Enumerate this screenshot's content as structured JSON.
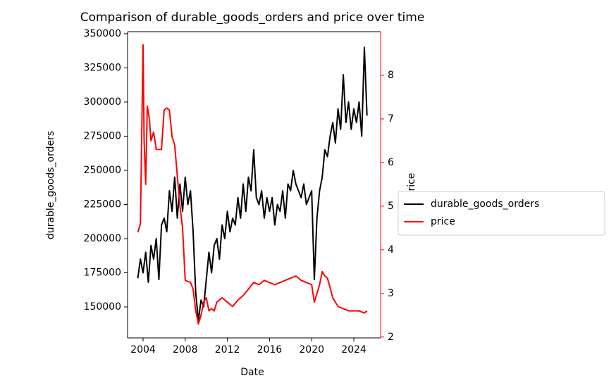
{
  "chart_data": {
    "type": "line",
    "title": "Comparison of durable_goods_orders and price over time",
    "xlabel": "Date",
    "ylabel": "durable_goods_orders",
    "y2label": "price",
    "xlim": [
      2002.53,
      2026.54
    ],
    "xticks": [
      2004,
      2008,
      2012,
      2016,
      2020,
      2024
    ],
    "ylim": [
      127320,
      351500
    ],
    "yticks": [
      150000,
      175000,
      200000,
      225000,
      250000,
      275000,
      300000,
      325000,
      350000
    ],
    "y2lim": [
      1.98,
      9.0
    ],
    "y2ticks": [
      2,
      3,
      4,
      5,
      6,
      7,
      8
    ],
    "legend": "right",
    "grid": false,
    "series": [
      {
        "name": "durable_goods_orders",
        "color": "#000000",
        "x": [
          2003.5,
          2003.75,
          2004.0,
          2004.25,
          2004.5,
          2004.75,
          2005.0,
          2005.25,
          2005.5,
          2005.75,
          2006.0,
          2006.25,
          2006.5,
          2006.75,
          2007.0,
          2007.25,
          2007.5,
          2007.75,
          2008.0,
          2008.25,
          2008.5,
          2008.75,
          2009.0,
          2009.25,
          2009.5,
          2009.75,
          2010.0,
          2010.25,
          2010.5,
          2010.75,
          2011.0,
          2011.25,
          2011.5,
          2011.75,
          2012.0,
          2012.25,
          2012.5,
          2012.75,
          2013.0,
          2013.25,
          2013.5,
          2013.75,
          2014.0,
          2014.25,
          2014.5,
          2014.75,
          2015.0,
          2015.25,
          2015.5,
          2015.75,
          2016.0,
          2016.25,
          2016.5,
          2016.75,
          2017.0,
          2017.25,
          2017.5,
          2017.75,
          2018.0,
          2018.25,
          2018.5,
          2018.75,
          2019.0,
          2019.25,
          2019.5,
          2019.75,
          2020.0,
          2020.25,
          2020.5,
          2020.75,
          2021.0,
          2021.25,
          2021.5,
          2021.75,
          2022.0,
          2022.25,
          2022.5,
          2022.75,
          2023.0,
          2023.25,
          2023.5,
          2023.75,
          2024.0,
          2024.25,
          2024.5,
          2024.75,
          2025.0,
          2025.25
        ],
        "values": [
          171000,
          185000,
          175000,
          190000,
          168000,
          195000,
          185000,
          200000,
          170000,
          210000,
          215000,
          205000,
          235000,
          220000,
          245000,
          215000,
          240000,
          220000,
          245000,
          225000,
          235000,
          205000,
          160000,
          140000,
          155000,
          150000,
          170000,
          190000,
          175000,
          195000,
          200000,
          185000,
          210000,
          200000,
          220000,
          205000,
          215000,
          210000,
          230000,
          215000,
          240000,
          220000,
          245000,
          235000,
          265000,
          230000,
          225000,
          235000,
          215000,
          230000,
          220000,
          230000,
          210000,
          225000,
          220000,
          235000,
          215000,
          240000,
          235000,
          250000,
          240000,
          235000,
          230000,
          240000,
          225000,
          230000,
          235000,
          170000,
          215000,
          235000,
          245000,
          265000,
          260000,
          275000,
          285000,
          270000,
          295000,
          280000,
          320000,
          285000,
          300000,
          280000,
          295000,
          285000,
          300000,
          275000,
          340000,
          290000
        ]
      },
      {
        "name": "price",
        "color": "#ff0000",
        "axis": "y2",
        "x": [
          2003.5,
          2003.75,
          2004.0,
          2004.1,
          2004.25,
          2004.4,
          2004.6,
          2004.75,
          2005.0,
          2005.25,
          2005.5,
          2005.75,
          2006.0,
          2006.25,
          2006.5,
          2006.75,
          2007.0,
          2007.25,
          2007.5,
          2007.75,
          2008.0,
          2008.5,
          2008.75,
          2009.0,
          2009.25,
          2009.5,
          2009.75,
          2010.0,
          2010.25,
          2010.5,
          2010.75,
          2011.0,
          2011.5,
          2012.0,
          2012.5,
          2013.0,
          2013.5,
          2014.0,
          2014.5,
          2015.0,
          2015.5,
          2016.0,
          2016.5,
          2017.0,
          2017.5,
          2018.0,
          2018.5,
          2019.0,
          2019.5,
          2020.0,
          2020.25,
          2020.5,
          2020.75,
          2021.0,
          2021.25,
          2021.5,
          2022.0,
          2022.5,
          2023.0,
          2023.5,
          2024.0,
          2024.5,
          2025.0,
          2025.25
        ],
        "values": [
          4.4,
          4.6,
          8.7,
          6.5,
          5.5,
          7.3,
          7.0,
          6.5,
          6.7,
          6.3,
          6.3,
          6.3,
          7.2,
          7.25,
          7.2,
          6.6,
          6.4,
          5.7,
          5.0,
          4.5,
          3.3,
          3.25,
          3.1,
          2.6,
          2.3,
          2.5,
          2.8,
          2.9,
          2.6,
          2.65,
          2.6,
          2.8,
          2.9,
          2.8,
          2.7,
          2.85,
          2.95,
          3.1,
          3.25,
          3.2,
          3.3,
          3.25,
          3.2,
          3.25,
          3.3,
          3.35,
          3.4,
          3.3,
          3.25,
          3.2,
          2.8,
          3.0,
          3.2,
          3.5,
          3.4,
          3.35,
          2.9,
          2.7,
          2.65,
          2.6,
          2.6,
          2.6,
          2.55,
          2.6
        ]
      }
    ]
  }
}
